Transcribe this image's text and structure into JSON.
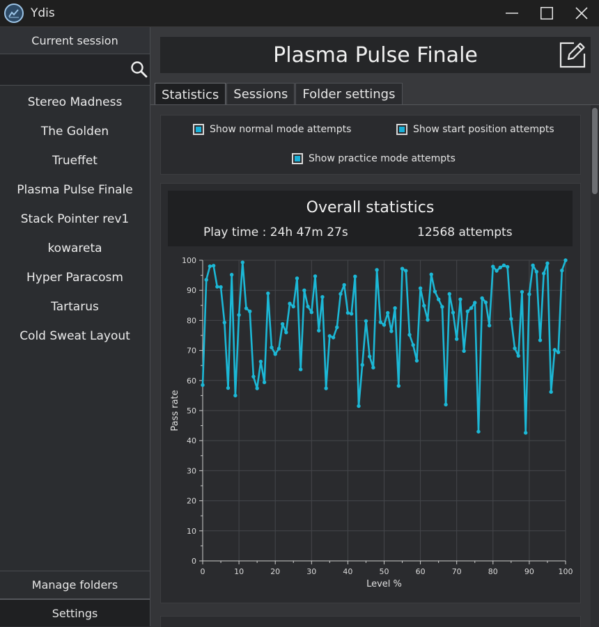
{
  "window": {
    "title": "Ydis"
  },
  "sidebar": {
    "header": "Current session",
    "search": {
      "value": "",
      "placeholder": ""
    },
    "levels": [
      "Stereo Madness",
      "The Golden",
      "Trueffet",
      "Plasma Pulse Finale",
      "Stack Pointer rev1",
      "kowareta",
      "Hyper Paracosm",
      "Tartarus",
      "Cold Sweat Layout"
    ],
    "manage_folders": "Manage folders",
    "settings": "Settings"
  },
  "main": {
    "level_name": "Plasma Pulse Finale",
    "tabs": [
      "Statistics",
      "Sessions",
      "Folder settings"
    ],
    "active_tab": "Statistics",
    "options": {
      "normal": "Show normal mode attempts",
      "start_pos": "Show start position attempts",
      "practice": "Show practice mode attempts"
    },
    "stats": {
      "title": "Overall statistics",
      "play_time": "Play time : 24h 47m 27s",
      "attempts": "12568 attempts"
    }
  },
  "colors": {
    "accent": "#1ab0d8",
    "line": "#1cb8d6"
  },
  "chart_data": {
    "type": "line",
    "title": "",
    "xlabel": "Level %",
    "ylabel": "Pass rate",
    "xlim": [
      0,
      100
    ],
    "ylim": [
      0,
      100
    ],
    "x_ticks": [
      0,
      10,
      20,
      30,
      40,
      50,
      60,
      70,
      80,
      90,
      100
    ],
    "y_ticks": [
      0,
      10,
      20,
      30,
      40,
      50,
      60,
      70,
      80,
      90,
      100
    ],
    "grid": true,
    "series": [
      {
        "x": [
          0,
          1,
          2,
          3,
          4,
          5,
          6,
          7,
          8,
          9,
          10,
          11,
          12,
          13,
          14,
          15,
          16,
          17,
          18,
          19,
          20,
          21,
          22,
          23,
          24,
          25,
          26,
          27,
          28,
          29,
          30,
          31,
          32,
          33,
          34,
          35,
          36,
          37,
          38,
          39,
          40,
          41,
          42,
          43,
          44,
          45,
          46,
          47,
          48,
          49,
          50,
          51,
          52,
          53,
          54,
          55,
          56,
          57,
          58,
          59,
          60,
          61,
          62,
          63,
          64,
          65,
          66,
          67,
          68,
          69,
          70,
          71,
          72,
          73,
          74,
          75,
          76,
          77,
          78,
          79,
          80,
          81,
          82,
          83,
          84,
          85,
          86,
          87,
          88,
          89,
          90,
          91,
          92,
          93,
          94,
          95,
          96,
          97,
          98,
          99,
          100
        ],
        "y": [
          58.5,
          93.5,
          98,
          98.2,
          91.2,
          91.1,
          79.3,
          57.5,
          95.2,
          55,
          81.8,
          99.3,
          84,
          83,
          61.3,
          57.4,
          66.3,
          59.4,
          89,
          71,
          68.8,
          70.6,
          78.8,
          76,
          85.6,
          84.6,
          94,
          63.7,
          90,
          84.6,
          82.7,
          94.7,
          76.6,
          87.8,
          57.4,
          74.8,
          74.3,
          77.7,
          88.8,
          91.8,
          82.5,
          82.2,
          94.6,
          51.5,
          65.2,
          79.8,
          68,
          64.3,
          96.8,
          79.4,
          78.5,
          82.5,
          76.4,
          84.1,
          58.2,
          97.2,
          96.5,
          75.2,
          71.8,
          66.6,
          90.7,
          84.9,
          80.2,
          95.3,
          89.6,
          87,
          84.5,
          52,
          88.8,
          82.6,
          73.8,
          87,
          69.8,
          83,
          84.1,
          85.9,
          43,
          87.4,
          86,
          78.3,
          97.9,
          96.5,
          97.6,
          98.3,
          97.8,
          80.5,
          70.7,
          68.2,
          89.5,
          42.6,
          88.7,
          98.3,
          96.2,
          73.4,
          95.6,
          99,
          56.2,
          70.2,
          69.4,
          96.6,
          100
        ]
      }
    ]
  }
}
